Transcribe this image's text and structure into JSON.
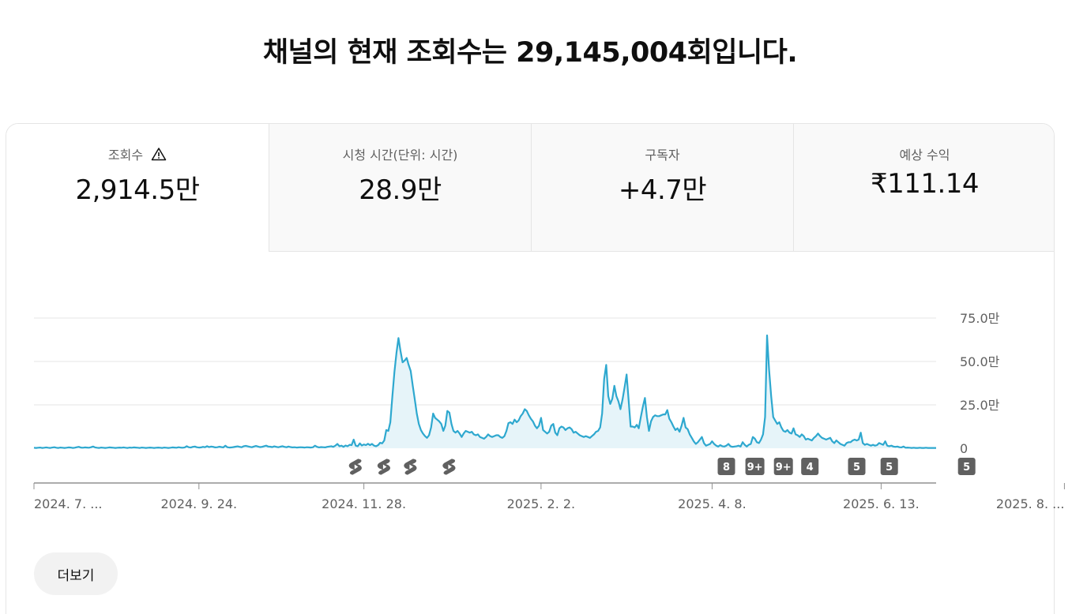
{
  "headline": "채널의 현재 조회수는 29,145,004회입니다.",
  "tabs": [
    {
      "label": "조회수",
      "value": "2,914.5만",
      "has_warning": true
    },
    {
      "label": "시청 시간(단위: 시간)",
      "value": "28.9만"
    },
    {
      "label": "구독자",
      "value": "+4.7만"
    },
    {
      "label": "예상 수익",
      "value": "₹111.14"
    }
  ],
  "more_button": "더보기",
  "colors": {
    "line": "#2ea8cf",
    "fill": "#e6f4f9",
    "marker_bg": "#606060"
  },
  "chart_data": {
    "type": "area",
    "y_unit": "만",
    "ylim": [
      0,
      75
    ],
    "y_ticks": [
      {
        "value": 75,
        "label": "75.0만"
      },
      {
        "value": 50,
        "label": "50.0만"
      },
      {
        "value": 25,
        "label": "25.0만"
      },
      {
        "value": 0,
        "label": "0"
      }
    ],
    "x_ticks": [
      "2024. 7. ...",
      "2024. 9. 24.",
      "2024. 11. 28.",
      "2025. 2. 2.",
      "2025. 4. 8.",
      "2025. 6. 13.",
      "2025. 8. ..."
    ],
    "x_tick_index": [
      0,
      81,
      162,
      249,
      333,
      416,
      506
    ],
    "series": [
      {
        "values": [
          0.3,
          0.2,
          0.3,
          0.4,
          0.2,
          0.3,
          0.5,
          0.3,
          0.2,
          0.4,
          0.6,
          0.3,
          0.2,
          0.4,
          0.3,
          0.2,
          0.3,
          0.5,
          0.4,
          0.2,
          0.3,
          0.6,
          0.8,
          0.4,
          0.3,
          0.5,
          0.4,
          0.3,
          0.6,
          1.0,
          0.5,
          0.3,
          0.2,
          0.4,
          0.3,
          0.2,
          0.3,
          0.5,
          0.4,
          0.3,
          0.2,
          0.3,
          0.4,
          0.3,
          0.5,
          0.3,
          0.2,
          0.4,
          0.3,
          0.5,
          0.4,
          0.3,
          0.2,
          0.4,
          0.3,
          0.2,
          0.3,
          0.4,
          0.3,
          0.2,
          0.3,
          0.4,
          0.3,
          0.2,
          0.4,
          0.3,
          0.2,
          0.3,
          0.5,
          0.4,
          0.3,
          0.6,
          0.4,
          0.3,
          0.5,
          1.2,
          0.6,
          0.4,
          0.8,
          1.0,
          0.6,
          0.4,
          0.5,
          0.8,
          0.6,
          1.2,
          0.7,
          1.0,
          0.8,
          0.5,
          0.6,
          0.9,
          0.7,
          0.5,
          1.5,
          0.6,
          0.4,
          0.5,
          0.7,
          0.9,
          1.1,
          0.8,
          0.6,
          1.2,
          1.4,
          1.1,
          0.8,
          0.6,
          1.0,
          1.3,
          1.0,
          0.7,
          0.8,
          1.2,
          1.5,
          1.0,
          0.9,
          0.7,
          1.1,
          0.8,
          0.6,
          0.9,
          1.2,
          0.8,
          0.6,
          1.0,
          0.7,
          0.5,
          0.6,
          0.4,
          0.5,
          0.6,
          0.5,
          0.4,
          0.6,
          0.5,
          0.4,
          0.6,
          1.5,
          0.8,
          0.5,
          0.7,
          0.6,
          0.5,
          0.8,
          1.0,
          1.2,
          0.8,
          1.5,
          2.5,
          1.2,
          1.5,
          0.8,
          1.6,
          1.2,
          2.0,
          1.8,
          5.0,
          1.5,
          1.2,
          2.8,
          1.6,
          2.2,
          1.8,
          2.6,
          1.8,
          2.5,
          1.5,
          1.2,
          1.8,
          3.2,
          2.8,
          4.5,
          10.5,
          10.0,
          15.0,
          30.0,
          44.0,
          55.0,
          63.5,
          56.0,
          49.5,
          50.5,
          52.0,
          48.0,
          44.5,
          36.0,
          28.0,
          20.0,
          14.0,
          10.5,
          8.5,
          7.0,
          6.0,
          7.5,
          12.0,
          20.0,
          17.5,
          16.5,
          15.5,
          14.0,
          10.0,
          13.0,
          21.5,
          20.5,
          14.0,
          10.0,
          9.0,
          10.0,
          8.5,
          6.5,
          8.5,
          10.0,
          9.5,
          9.0,
          9.5,
          8.0,
          7.5,
          8.0,
          6.5,
          6.0,
          5.5,
          6.5,
          8.0,
          7.0,
          6.5,
          7.0,
          7.5,
          7.5,
          6.5,
          6.0,
          7.0,
          10.0,
          14.5,
          15.0,
          14.0,
          16.5,
          15.0,
          16.0,
          18.5,
          20.0,
          22.5,
          21.5,
          19.0,
          17.0,
          15.5,
          13.0,
          11.5,
          13.0,
          17.5,
          10.5,
          9.5,
          8.5,
          9.5,
          13.0,
          14.0,
          9.0,
          7.5,
          11.5,
          12.5,
          12.0,
          10.5,
          11.5,
          12.0,
          11.0,
          9.0,
          9.5,
          8.5,
          7.5,
          7.0,
          6.5,
          7.0,
          6.5,
          6.0,
          7.0,
          8.0,
          9.5,
          10.0,
          12.0,
          20.0,
          40.0,
          48.0,
          30.0,
          25.5,
          28.5,
          36.0,
          30.0,
          27.0,
          22.5,
          28.0,
          35.0,
          42.5,
          28.0,
          12.5,
          12.5,
          12.0,
          13.5,
          11.5,
          18.0,
          24.0,
          29.0,
          18.0,
          10.0,
          15.5,
          18.0,
          19.0,
          18.5,
          18.5,
          19.0,
          19.5,
          19.5,
          22.0,
          17.0,
          15.0,
          12.5,
          10.5,
          11.5,
          9.5,
          13.0,
          17.5,
          12.0,
          11.0,
          8.0,
          6.0,
          4.0,
          2.5,
          3.5,
          5.0,
          6.5,
          3.0,
          1.5,
          2.0,
          2.5,
          4.0,
          2.5,
          1.5,
          1.0,
          1.8,
          1.2,
          1.0,
          1.5,
          2.5,
          1.2,
          0.8,
          1.0,
          1.2,
          1.5,
          1.0,
          3.5,
          2.0,
          1.0,
          2.0,
          2.5,
          6.5,
          5.5,
          3.5,
          3.0,
          5.0,
          8.0,
          18.0,
          65.0,
          45.0,
          30.0,
          18.0,
          16.0,
          14.0,
          15.0,
          12.0,
          10.0,
          9.5,
          10.5,
          9.0,
          8.5,
          11.5,
          8.0,
          7.5,
          6.5,
          8.0,
          7.0,
          5.0,
          5.5,
          5.0,
          4.5,
          6.0,
          7.0,
          8.5,
          7.0,
          6.0,
          5.5,
          5.0,
          5.5,
          6.0,
          4.0,
          3.0,
          4.5,
          3.5,
          2.5,
          2.0,
          1.5,
          3.0,
          3.5,
          3.5,
          4.5,
          5.0,
          4.5,
          5.0,
          9.0,
          3.0,
          2.0,
          2.5,
          2.0,
          1.5,
          2.0,
          1.5,
          1.8,
          3.0,
          2.5,
          2.0,
          4.0,
          1.5,
          1.2,
          1.5,
          1.0,
          0.8,
          1.0,
          0.6,
          0.5,
          1.0,
          0.3,
          0.4,
          0.3,
          0.2,
          0.3,
          0.2,
          0.2,
          0.3,
          0.2,
          0.2,
          0.3,
          0.2,
          0.2,
          0.2,
          0.2,
          0.2
        ]
      }
    ],
    "annotations": [
      {
        "index": 158,
        "type": "shorts-icon"
      },
      {
        "index": 172,
        "type": "shorts-icon"
      },
      {
        "index": 185,
        "type": "shorts-icon"
      },
      {
        "index": 204,
        "type": "shorts-icon"
      },
      {
        "index": 340,
        "label": "8"
      },
      {
        "index": 354,
        "label": "9+"
      },
      {
        "index": 368,
        "label": "9+"
      },
      {
        "index": 381,
        "label": "4"
      },
      {
        "index": 404,
        "label": "5"
      },
      {
        "index": 420,
        "label": "5"
      },
      {
        "index": 458,
        "label": "5"
      }
    ]
  }
}
